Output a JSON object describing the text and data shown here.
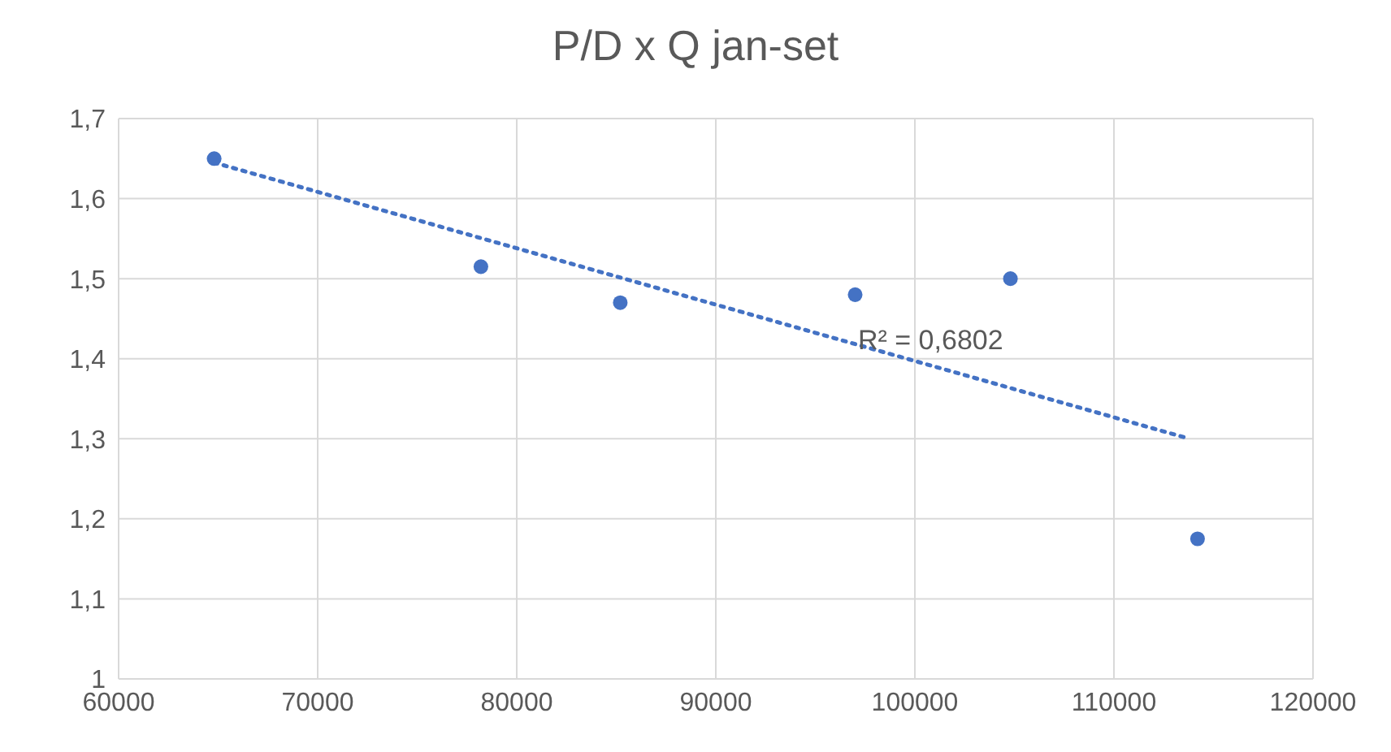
{
  "chart_data": {
    "type": "scatter",
    "title": "P/D x Q jan-set",
    "x": [
      64800,
      78200,
      85200,
      97000,
      104800,
      114200
    ],
    "series": [
      {
        "color": "#4472c4",
        "marker": "circle",
        "values": [
          1.65,
          1.515,
          1.47,
          1.48,
          1.5,
          1.175
        ]
      },
      {
        "type": "line",
        "color": "#4472c4",
        "marker": "none",
        "line_style": "dotted",
        "x": [
          64800,
          113800
        ],
        "values": [
          1.645,
          1.3
        ]
      }
    ],
    "xlim": [
      60000,
      120000
    ],
    "xticks": [
      60000,
      70000,
      80000,
      90000,
      100000,
      110000,
      120000
    ],
    "ylim": [
      1,
      1.7
    ],
    "yticks": [
      1,
      {
        "value": 1.1,
        "label": "1,1"
      },
      {
        "value": 1.2,
        "label": "1,2"
      },
      {
        "value": 1.3,
        "label": "1,3"
      },
      {
        "value": 1.4,
        "label": "1,4"
      },
      {
        "value": 1.5,
        "label": "1,5"
      },
      {
        "value": 1.6,
        "label": "1,6"
      },
      {
        "value": 1.7,
        "label": "1,7"
      }
    ],
    "grid": true,
    "annotations": [
      "R² = 0,6802"
    ]
  }
}
